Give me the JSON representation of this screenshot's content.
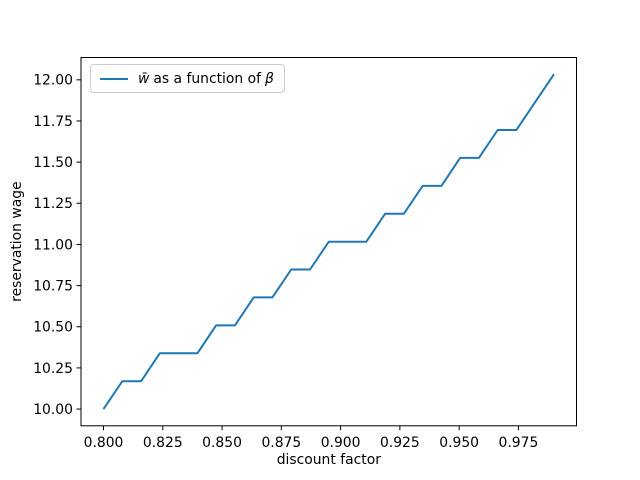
{
  "figure": {
    "background": "#ffffff",
    "legend": {
      "var1": "w̄",
      "mid": "as a function of",
      "var2": "β",
      "full_label": "w̄ as a function of β",
      "line_color": "#1f77b4",
      "border_color": "#cccccc",
      "position": "upper left"
    }
  },
  "chart_data": {
    "type": "line",
    "title": "",
    "xlabel": "discount factor",
    "ylabel": "reservation wage",
    "legend": [
      "w̄ as a function of β"
    ],
    "legend_position": "upper left",
    "grid": false,
    "line_color": "#1f77b4",
    "xlim": [
      0.7905,
      0.9995
    ],
    "ylim": [
      9.8983,
      12.1356
    ],
    "xticks": [
      0.8,
      0.825,
      0.85,
      0.875,
      0.9,
      0.925,
      0.95,
      0.975
    ],
    "xtick_labels": [
      "0.800",
      "0.825",
      "0.850",
      "0.875",
      "0.900",
      "0.925",
      "0.950",
      "0.975"
    ],
    "yticks": [
      10.0,
      10.25,
      10.5,
      10.75,
      11.0,
      11.25,
      11.5,
      11.75,
      12.0
    ],
    "ytick_labels": [
      "10.00",
      "10.25",
      "10.50",
      "10.75",
      "11.00",
      "11.25",
      "11.50",
      "11.75",
      "12.00"
    ],
    "x": [
      0.8,
      0.80792,
      0.81583,
      0.82375,
      0.83167,
      0.83958,
      0.8475,
      0.85542,
      0.86333,
      0.87125,
      0.87917,
      0.88708,
      0.895,
      0.90292,
      0.91083,
      0.91875,
      0.92667,
      0.93458,
      0.9425,
      0.95042,
      0.95833,
      0.96625,
      0.97417,
      0.98208,
      0.99
    ],
    "y": [
      10.0,
      10.1695,
      10.1695,
      10.339,
      10.339,
      10.339,
      10.5085,
      10.5085,
      10.678,
      10.678,
      10.8475,
      10.8475,
      11.0169,
      11.0169,
      11.0169,
      11.1864,
      11.1864,
      11.3559,
      11.3559,
      11.5254,
      11.5254,
      11.6949,
      11.6949,
      11.8644,
      12.0339
    ]
  }
}
